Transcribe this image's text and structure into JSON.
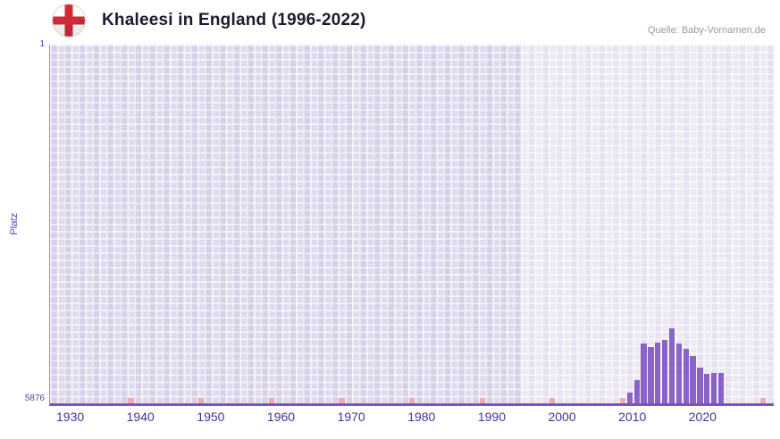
{
  "header": {
    "title": "Khaleesi in England (1996-2022)",
    "source": "Quelle: Baby-Vornamen.de"
  },
  "colors": {
    "bar": "#8a63c9",
    "axis": "#7a54c0",
    "x_tick_label": "#4b3095",
    "no_rank_marker": "#f2aabb",
    "plot_background": "#e2dcef",
    "highlight_background": "#edeaf6"
  },
  "chart_data": {
    "type": "bar",
    "title": "Khaleesi in England (1996-2022)",
    "xlabel": "",
    "ylabel": "Platz",
    "x_range": [
      1927,
      2030
    ],
    "y_range": [
      1,
      5876
    ],
    "y_inverted": true,
    "y_axis_labels": {
      "top": "1",
      "bottom": "5876"
    },
    "x_tick_labels": [
      1930,
      1940,
      1950,
      1960,
      1970,
      1980,
      1990,
      2000,
      2010,
      2020
    ],
    "highlight_region": {
      "from": 1994,
      "to": 2030
    },
    "no_rank_marker_years": [
      1938,
      1948,
      1958,
      1968,
      1978,
      1988,
      1998,
      2008,
      2018,
      2028
    ],
    "grid": true,
    "legend": false,
    "series": [
      {
        "name": "Khaleesi",
        "unit": "Platz",
        "points": [
          {
            "year": 2009,
            "rank": 5700
          },
          {
            "year": 2010,
            "rank": 5500
          },
          {
            "year": 2011,
            "rank": 4900
          },
          {
            "year": 2012,
            "rank": 4950
          },
          {
            "year": 2013,
            "rank": 4880
          },
          {
            "year": 2014,
            "rank": 4840
          },
          {
            "year": 2015,
            "rank": 4650
          },
          {
            "year": 2016,
            "rank": 4900
          },
          {
            "year": 2017,
            "rank": 4990
          },
          {
            "year": 2018,
            "rank": 5100
          },
          {
            "year": 2019,
            "rank": 5290
          },
          {
            "year": 2020,
            "rank": 5400
          },
          {
            "year": 2021,
            "rank": 5380
          },
          {
            "year": 2022,
            "rank": 5380
          }
        ]
      }
    ]
  }
}
